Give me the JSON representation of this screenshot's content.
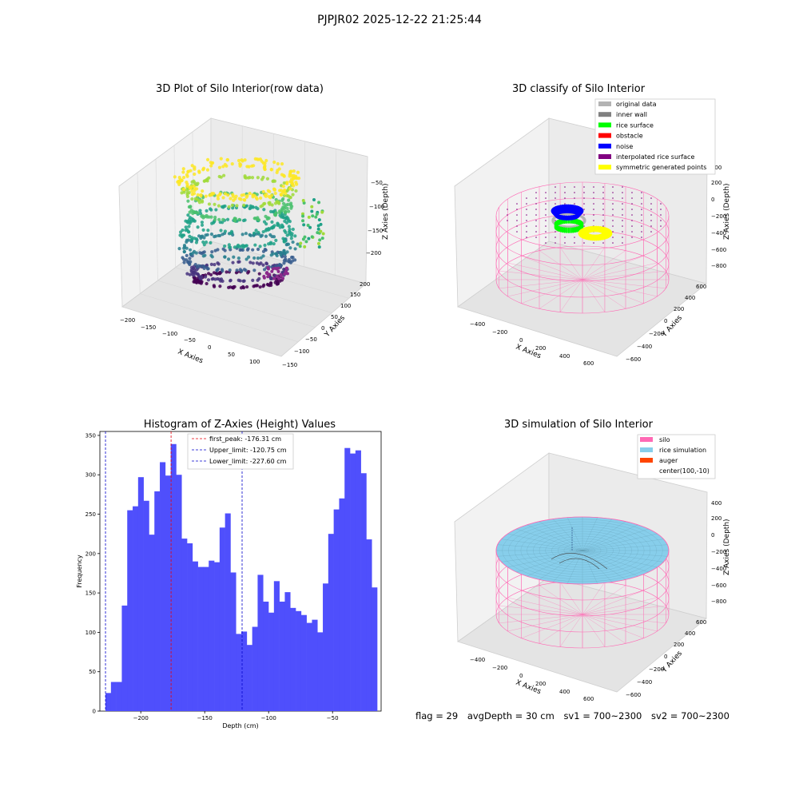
{
  "figure": {
    "supertitle": "PJPJR02 2025-12-22 21:25:44"
  },
  "colors": {
    "hist_bar": "#4f4ffc",
    "peak_line": "#e8000b",
    "limit_line": "#0000cc",
    "silo": "#ff69b4",
    "rice": "#87ceeb",
    "auger": "#ff4500",
    "original": "#b3b3b3",
    "inner_wall": "#808080",
    "rice_surface": "#00ff00",
    "obstacle": "#ff0000",
    "noise": "#0000ff",
    "interp": "#800080",
    "symmetric": "#ffff00"
  },
  "chart_data": [
    {
      "type": "scatter3d",
      "title": "3D Plot of Silo Interior(row data)",
      "xlabel": "X Axies",
      "ylabel": "Y Axies",
      "zlabel": "Z Axies (Depth)",
      "x_ticks": [
        "−200",
        "−150",
        "−100",
        "−50",
        "0",
        "50",
        "100"
      ],
      "y_ticks": [
        "200",
        "150",
        "100",
        "50",
        "0",
        "−50",
        "−100",
        "−150"
      ],
      "z_ticks": [
        "−50",
        "−100",
        "−150",
        "−200"
      ],
      "colormap": "viridis"
    },
    {
      "type": "scatter3d",
      "title": "3D classify of Silo Interior",
      "xlabel": "X Axies",
      "ylabel": "Y Axies",
      "zlabel": "Z Axies (Depth)",
      "x_ticks": [
        "−400",
        "−200",
        "0",
        "200",
        "400",
        "600"
      ],
      "y_ticks": [
        "600",
        "400",
        "200",
        "0",
        "−200",
        "−400",
        "−600"
      ],
      "z_ticks": [
        "400",
        "200",
        "0",
        "−200",
        "−400",
        "−600",
        "−800"
      ],
      "legend": [
        {
          "label": "original data",
          "color": "#b3b3b3"
        },
        {
          "label": "inner wall",
          "color": "#808080"
        },
        {
          "label": "rice surface",
          "color": "#00ff00"
        },
        {
          "label": "obstacle",
          "color": "#ff0000"
        },
        {
          "label": "noise",
          "color": "#0000ff"
        },
        {
          "label": "interpolated rice surface",
          "color": "#800080"
        },
        {
          "label": "symmetric generated points",
          "color": "#ffff00"
        }
      ]
    },
    {
      "type": "bar",
      "title": "Histogram of Z-Axies (Height) Values",
      "xlabel": "Depth (cm)",
      "ylabel": "Frequency",
      "xlim": [
        -232,
        -12
      ],
      "ylim": [
        0,
        355
      ],
      "x_ticks": [
        -200,
        -150,
        -100,
        -50
      ],
      "y_ticks": [
        0,
        50,
        100,
        150,
        200,
        250,
        300,
        350
      ],
      "bin_start": -227.6,
      "bin_width": 4.25,
      "values": [
        23,
        37,
        37,
        134,
        255,
        260,
        297,
        267,
        224,
        279,
        316,
        299,
        339,
        300,
        219,
        213,
        190,
        183,
        183,
        191,
        189,
        233,
        251,
        176,
        98,
        101,
        84,
        107,
        173,
        139,
        125,
        165,
        139,
        151,
        131,
        127,
        122,
        112,
        116,
        100,
        162,
        225,
        256,
        270,
        334,
        327,
        331,
        302,
        218,
        157
      ],
      "vlines": [
        {
          "label": "first_peak: -176.31 cm",
          "x": -176.31,
          "color": "#e8000b"
        },
        {
          "label": "Upper_limit: -120.75 cm",
          "x": -120.75,
          "color": "#0000cc"
        },
        {
          "label": "Lower_limit: -227.60 cm",
          "x": -227.6,
          "color": "#0000cc"
        }
      ]
    },
    {
      "type": "surface3d",
      "title": "3D simulation of Silo Interior",
      "xlabel": "X Axies",
      "ylabel": "Y Axies",
      "zlabel": "Z Axies (Depth)",
      "x_ticks": [
        "−400",
        "−200",
        "0",
        "200",
        "400",
        "600"
      ],
      "y_ticks": [
        "600",
        "400",
        "200",
        "0",
        "−200",
        "−400",
        "−600"
      ],
      "z_ticks": [
        "400",
        "200",
        "0",
        "−200",
        "−400",
        "−600",
        "−800"
      ],
      "legend": [
        {
          "label": "silo",
          "color": "#ff69b4"
        },
        {
          "label": "rice simulation",
          "color": "#87ceeb"
        },
        {
          "label": "auger",
          "color": "#ff4500"
        },
        {
          "label": "center(100,-10)",
          "color": ""
        }
      ]
    }
  ],
  "footer": {
    "flag": "flag = 29",
    "avg_depth": "avgDepth = 30 cm",
    "sv1": "sv1 = 700~2300",
    "sv2": "sv2 = 700~2300"
  }
}
